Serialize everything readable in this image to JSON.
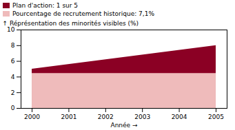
{
  "chart_data": {
    "type": "area",
    "x": [
      2000,
      2005
    ],
    "series": [
      {
        "name": "Plan d'action: 1 sur 5",
        "color": "#8B0024",
        "values": [
          5.0,
          8.0
        ]
      },
      {
        "name": "Pourcentage de recrutement historique: 7,1%",
        "color": "#EFBBBB",
        "values": [
          4.45,
          4.45
        ]
      }
    ],
    "xlabel": "Année",
    "ylabel": "Réprésentation des minorités visibles (%)",
    "xlim": [
      1999.7,
      2005.3
    ],
    "xticks": [
      2000,
      2001,
      2002,
      2003,
      2004,
      2005
    ],
    "ylim": [
      0,
      10
    ],
    "yticks": [
      0,
      2,
      4,
      6,
      8,
      10
    ],
    "legend": "upper left"
  }
}
